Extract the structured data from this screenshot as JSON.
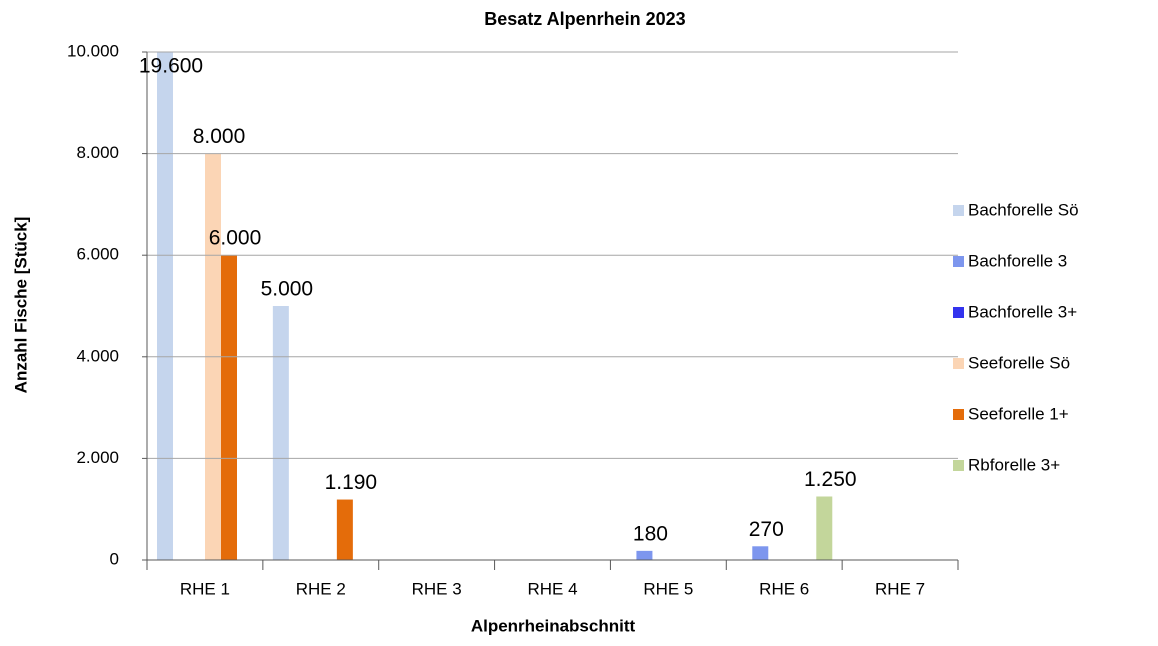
{
  "chart_data": {
    "type": "bar",
    "title": "Besatz Alpenrhein 2023",
    "x_label": "Alpenrheinabschnitt",
    "y_label": "Anzahl Fische [Stück]",
    "categories": [
      "RHE 1",
      "RHE 2",
      "RHE 3",
      "RHE 4",
      "RHE 5",
      "RHE 6",
      "RHE 7"
    ],
    "series": [
      {
        "name": "Bachforelle Sö",
        "color": "#c5d5ed",
        "values": [
          19600,
          5000,
          null,
          null,
          null,
          null,
          null
        ],
        "value_labels": [
          "19.600",
          "5.000",
          null,
          null,
          null,
          null,
          null
        ]
      },
      {
        "name": "Bachforelle 3",
        "color": "#7d96ee",
        "values": [
          null,
          null,
          null,
          null,
          180,
          270,
          null
        ],
        "value_labels": [
          null,
          null,
          null,
          null,
          "180",
          "270",
          null
        ]
      },
      {
        "name": "Bachforelle 3+",
        "color": "#3333ee",
        "values": [
          null,
          null,
          null,
          null,
          null,
          null,
          null
        ]
      },
      {
        "name": "Seeforelle Sö",
        "color": "#fbd5b5",
        "values": [
          8000,
          null,
          null,
          null,
          null,
          null,
          null
        ],
        "value_labels": [
          "8.000",
          null,
          null,
          null,
          null,
          null,
          null
        ]
      },
      {
        "name": "Seeforelle 1+",
        "color": "#e46c0a",
        "values": [
          6000,
          1190,
          null,
          null,
          null,
          null,
          null
        ],
        "value_labels": [
          "6.000",
          "1.190",
          null,
          null,
          null,
          null,
          null
        ]
      },
      {
        "name": "Rbforelle 3+",
        "color": "#c3d69b",
        "values": [
          null,
          null,
          null,
          null,
          null,
          1250,
          null
        ],
        "value_labels": [
          null,
          null,
          null,
          null,
          null,
          "1.250",
          null
        ]
      }
    ],
    "ylim": [
      0,
      10000
    ],
    "yticks": [
      0,
      {
        "value": 2000,
        "label": "2.000"
      },
      {
        "value": 4000,
        "label": "4.000"
      },
      {
        "value": 6000,
        "label": "6.000"
      },
      {
        "value": 8000,
        "label": "8.000"
      },
      {
        "value": 10000,
        "label": "10.000"
      }
    ],
    "grid": true,
    "legend": "right"
  }
}
